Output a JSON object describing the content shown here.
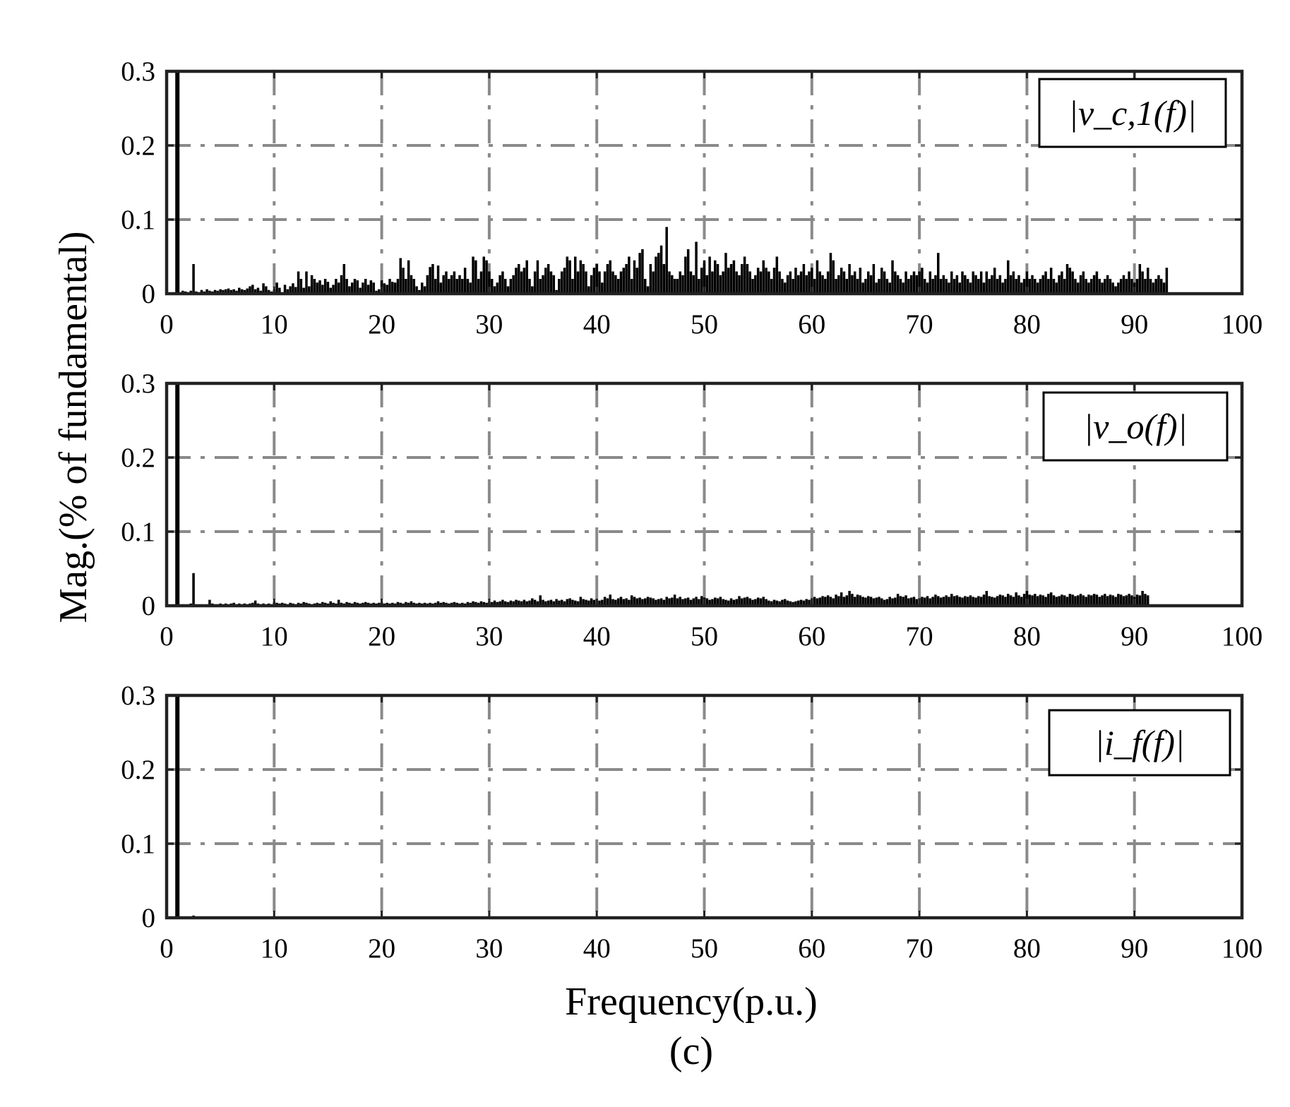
{
  "figure_label": "(c)",
  "shared_ylabel": "Mag.(% of fundamental)",
  "chart_data": [
    {
      "type": "bar",
      "legend": "|v_c,1(f)|",
      "xlabel": "",
      "xlim": [
        0,
        100
      ],
      "ylim": [
        0,
        0.3
      ],
      "xticks": [
        "0",
        "10",
        "20",
        "30",
        "40",
        "50",
        "60",
        "70",
        "80",
        "90",
        "100"
      ],
      "yticks": [
        "0",
        "0.1",
        "0.2",
        "0.3"
      ],
      "grid": true,
      "legend_position": "top-right",
      "fundamental": {
        "x": 1,
        "y": 0.3
      },
      "x_start": 1.5,
      "x_step": 0.25,
      "values": [
        0.004,
        0.003,
        0.002,
        0.004,
        0.04,
        0.003,
        0.002,
        0.005,
        0.003,
        0.006,
        0.004,
        0.003,
        0.005,
        0.004,
        0.006,
        0.005,
        0.006,
        0.007,
        0.005,
        0.006,
        0.004,
        0.008,
        0.006,
        0.005,
        0.007,
        0.01,
        0.012,
        0.006,
        0.008,
        0.004,
        0.014,
        0.01,
        0.005,
        0.003,
        0.006,
        0.015,
        0.008,
        0.002,
        0.012,
        0.006,
        0.01,
        0.014,
        0.009,
        0.03,
        0.02,
        0.008,
        0.03,
        0.01,
        0.025,
        0.02,
        0.015,
        0.018,
        0.012,
        0.02,
        0.016,
        0.008,
        0.012,
        0.02,
        0.015,
        0.025,
        0.04,
        0.02,
        0.01,
        0.015,
        0.02,
        0.018,
        0.008,
        0.015,
        0.02,
        0.012,
        0.018,
        0.015,
        0.004,
        0.006,
        0.018,
        0.014,
        0.012,
        0.02,
        0.016,
        0.015,
        0.02,
        0.048,
        0.035,
        0.02,
        0.045,
        0.025,
        0.02,
        0.01,
        0.005,
        0.015,
        0.01,
        0.025,
        0.036,
        0.04,
        0.02,
        0.038,
        0.015,
        0.025,
        0.03,
        0.02,
        0.025,
        0.03,
        0.02,
        0.025,
        0.02,
        0.035,
        0.02,
        0.015,
        0.05,
        0.045,
        0.02,
        0.03,
        0.05,
        0.045,
        0.03,
        0.02,
        0.01,
        0.015,
        0.025,
        0.03,
        0.02,
        0.01,
        0.02,
        0.025,
        0.035,
        0.04,
        0.03,
        0.035,
        0.045,
        0.02,
        0.01,
        0.03,
        0.045,
        0.02,
        0.025,
        0.035,
        0.04,
        0.03,
        0.025,
        0.005,
        0.02,
        0.03,
        0.035,
        0.05,
        0.045,
        0.02,
        0.05,
        0.03,
        0.045,
        0.04,
        0.03,
        0.01,
        0.025,
        0.035,
        0.04,
        0.03,
        0.015,
        0.03,
        0.04,
        0.045,
        0.03,
        0.025,
        0.02,
        0.03,
        0.035,
        0.04,
        0.05,
        0.02,
        0.045,
        0.035,
        0.055,
        0.06,
        0.02,
        0.01,
        0.04,
        0.03,
        0.05,
        0.055,
        0.065,
        0.04,
        0.09,
        0.03,
        0.025,
        0.02,
        0.02,
        0.03,
        0.025,
        0.05,
        0.06,
        0.03,
        0.025,
        0.07,
        0.02,
        0.035,
        0.045,
        0.025,
        0.05,
        0.03,
        0.045,
        0.04,
        0.025,
        0.03,
        0.055,
        0.035,
        0.04,
        0.045,
        0.03,
        0.025,
        0.04,
        0.05,
        0.04,
        0.03,
        0.02,
        0.025,
        0.035,
        0.03,
        0.045,
        0.035,
        0.03,
        0.02,
        0.035,
        0.05,
        0.03,
        0.02,
        0.015,
        0.025,
        0.03,
        0.02,
        0.035,
        0.025,
        0.03,
        0.04,
        0.025,
        0.03,
        0.035,
        0.02,
        0.045,
        0.03,
        0.025,
        0.02,
        0.03,
        0.055,
        0.045,
        0.02,
        0.025,
        0.035,
        0.03,
        0.02,
        0.04,
        0.025,
        0.03,
        0.02,
        0.035,
        0.015,
        0.02,
        0.03,
        0.025,
        0.04,
        0.015,
        0.02,
        0.035,
        0.03,
        0.02,
        0.015,
        0.045,
        0.03,
        0.025,
        0.02,
        0.015,
        0.03,
        0.02,
        0.025,
        0.03,
        0.025,
        0.03,
        0.035,
        0.02,
        0.015,
        0.03,
        0.02,
        0.025,
        0.055,
        0.02,
        0.025,
        0.02,
        0.015,
        0.03,
        0.02,
        0.025,
        0.015,
        0.03,
        0.025,
        0.02,
        0.015,
        0.03,
        0.025,
        0.02,
        0.03,
        0.015,
        0.03,
        0.02,
        0.025,
        0.035,
        0.02,
        0.025,
        0.015,
        0.02,
        0.045,
        0.025,
        0.03,
        0.02,
        0.025,
        0.015,
        0.02,
        0.03,
        0.02,
        0.025,
        0.02,
        0.015,
        0.02,
        0.025,
        0.03,
        0.02,
        0.035,
        0.02,
        0.015,
        0.025,
        0.03,
        0.02,
        0.04,
        0.035,
        0.03,
        0.02,
        0.015,
        0.025,
        0.03,
        0.02,
        0.015,
        0.02,
        0.025,
        0.03,
        0.02,
        0.015,
        0.02,
        0.025,
        0.02,
        0.015,
        0.01,
        0.015,
        0.02,
        0.025,
        0.02,
        0.03,
        0.02,
        0.015,
        0.02,
        0.04,
        0.03,
        0.02,
        0.035,
        0.02,
        0.015,
        0.02,
        0.025,
        0.02,
        0.015,
        0.035
      ]
    },
    {
      "type": "bar",
      "legend": "|v_o(f)|",
      "xlabel": "",
      "xlim": [
        0,
        100
      ],
      "ylim": [
        0,
        0.3
      ],
      "xticks": [
        "0",
        "10",
        "20",
        "30",
        "40",
        "50",
        "60",
        "70",
        "80",
        "90",
        "100"
      ],
      "yticks": [
        "0",
        "0.1",
        "0.2",
        "0.3"
      ],
      "grid": true,
      "legend_position": "top-right",
      "fundamental": {
        "x": 1,
        "y": 0.3
      },
      "x_start": 1.5,
      "x_step": 0.25,
      "values": [
        0.002,
        0.001,
        0.002,
        0.003,
        0.044,
        0.002,
        0.001,
        0.002,
        0.001,
        0.002,
        0.008,
        0.003,
        0.002,
        0.002,
        0.003,
        0.002,
        0.003,
        0.002,
        0.003,
        0.004,
        0.002,
        0.003,
        0.002,
        0.003,
        0.002,
        0.003,
        0.004,
        0.007,
        0.003,
        0.002,
        0.003,
        0.002,
        0.003,
        0.002,
        0.005,
        0.004,
        0.003,
        0.004,
        0.003,
        0.002,
        0.004,
        0.003,
        0.002,
        0.004,
        0.003,
        0.005,
        0.004,
        0.003,
        0.002,
        0.003,
        0.004,
        0.003,
        0.005,
        0.004,
        0.003,
        0.006,
        0.004,
        0.003,
        0.008,
        0.004,
        0.003,
        0.005,
        0.004,
        0.003,
        0.005,
        0.004,
        0.003,
        0.004,
        0.005,
        0.004,
        0.003,
        0.004,
        0.003,
        0.004,
        0.005,
        0.003,
        0.004,
        0.003,
        0.004,
        0.003,
        0.005,
        0.004,
        0.003,
        0.005,
        0.004,
        0.006,
        0.004,
        0.003,
        0.004,
        0.003,
        0.004,
        0.003,
        0.004,
        0.003,
        0.004,
        0.006,
        0.004,
        0.005,
        0.004,
        0.003,
        0.004,
        0.005,
        0.004,
        0.003,
        0.004,
        0.003,
        0.005,
        0.004,
        0.006,
        0.005,
        0.004,
        0.006,
        0.005,
        0.004,
        0.006,
        0.005,
        0.007,
        0.005,
        0.006,
        0.008,
        0.006,
        0.005,
        0.007,
        0.006,
        0.008,
        0.007,
        0.006,
        0.008,
        0.006,
        0.007,
        0.01,
        0.008,
        0.006,
        0.014,
        0.008,
        0.006,
        0.007,
        0.008,
        0.006,
        0.009,
        0.007,
        0.008,
        0.006,
        0.009,
        0.01,
        0.008,
        0.007,
        0.006,
        0.012,
        0.009,
        0.008,
        0.007,
        0.01,
        0.008,
        0.009,
        0.007,
        0.008,
        0.012,
        0.01,
        0.015,
        0.009,
        0.008,
        0.01,
        0.012,
        0.009,
        0.01,
        0.008,
        0.014,
        0.012,
        0.01,
        0.011,
        0.009,
        0.01,
        0.012,
        0.011,
        0.01,
        0.008,
        0.009,
        0.01,
        0.008,
        0.012,
        0.01,
        0.011,
        0.015,
        0.01,
        0.012,
        0.009,
        0.01,
        0.011,
        0.008,
        0.01,
        0.012,
        0.009,
        0.013,
        0.011,
        0.01,
        0.008,
        0.009,
        0.011,
        0.01,
        0.012,
        0.009,
        0.008,
        0.007,
        0.01,
        0.008,
        0.009,
        0.013,
        0.01,
        0.011,
        0.012,
        0.01,
        0.008,
        0.009,
        0.011,
        0.01,
        0.012,
        0.009,
        0.007,
        0.006,
        0.008,
        0.007,
        0.006,
        0.008,
        0.009,
        0.007,
        0.006,
        0.005,
        0.006,
        0.007,
        0.008,
        0.007,
        0.009,
        0.008,
        0.01,
        0.012,
        0.01,
        0.011,
        0.013,
        0.012,
        0.014,
        0.012,
        0.01,
        0.015,
        0.013,
        0.018,
        0.012,
        0.014,
        0.02,
        0.016,
        0.012,
        0.015,
        0.014,
        0.012,
        0.011,
        0.013,
        0.012,
        0.01,
        0.011,
        0.012,
        0.01,
        0.008,
        0.009,
        0.012,
        0.01,
        0.011,
        0.016,
        0.013,
        0.012,
        0.014,
        0.01,
        0.011,
        0.012,
        0.009,
        0.01,
        0.012,
        0.011,
        0.013,
        0.01,
        0.012,
        0.015,
        0.013,
        0.011,
        0.012,
        0.014,
        0.012,
        0.016,
        0.013,
        0.014,
        0.012,
        0.011,
        0.013,
        0.012,
        0.014,
        0.012,
        0.011,
        0.013,
        0.012,
        0.015,
        0.02,
        0.013,
        0.012,
        0.011,
        0.013,
        0.015,
        0.014,
        0.012,
        0.016,
        0.014,
        0.012,
        0.018,
        0.014,
        0.012,
        0.016,
        0.02,
        0.015,
        0.014,
        0.016,
        0.013,
        0.015,
        0.014,
        0.012,
        0.016,
        0.018,
        0.014,
        0.012,
        0.013,
        0.015,
        0.014,
        0.012,
        0.016,
        0.015,
        0.013,
        0.014,
        0.016,
        0.014,
        0.012,
        0.015,
        0.014,
        0.016,
        0.015,
        0.012,
        0.014,
        0.016,
        0.013,
        0.015,
        0.014,
        0.012,
        0.016,
        0.015,
        0.013,
        0.014,
        0.016,
        0.014,
        0.012,
        0.015,
        0.014,
        0.02,
        0.016,
        0.014
      ]
    },
    {
      "type": "bar",
      "legend": "|i_f(f)|",
      "xlabel": "Frequency(p.u.)",
      "xlim": [
        0,
        100
      ],
      "ylim": [
        0,
        0.3
      ],
      "xticks": [
        "0",
        "10",
        "20",
        "30",
        "40",
        "50",
        "60",
        "70",
        "80",
        "90",
        "100"
      ],
      "yticks": [
        "0",
        "0.1",
        "0.2",
        "0.3"
      ],
      "grid": true,
      "legend_position": "top-right",
      "fundamental": {
        "x": 1,
        "y": 0.3
      },
      "x_start": 1.5,
      "x_step": 0.25,
      "values": [
        0.0005,
        0.0004,
        0.0003,
        0.0004,
        0.003,
        0.0003,
        0.0002,
        0.0003,
        0.0002,
        0.0003,
        0.0004,
        0.0003,
        0.0002,
        0.0003,
        0.0002
      ]
    }
  ]
}
